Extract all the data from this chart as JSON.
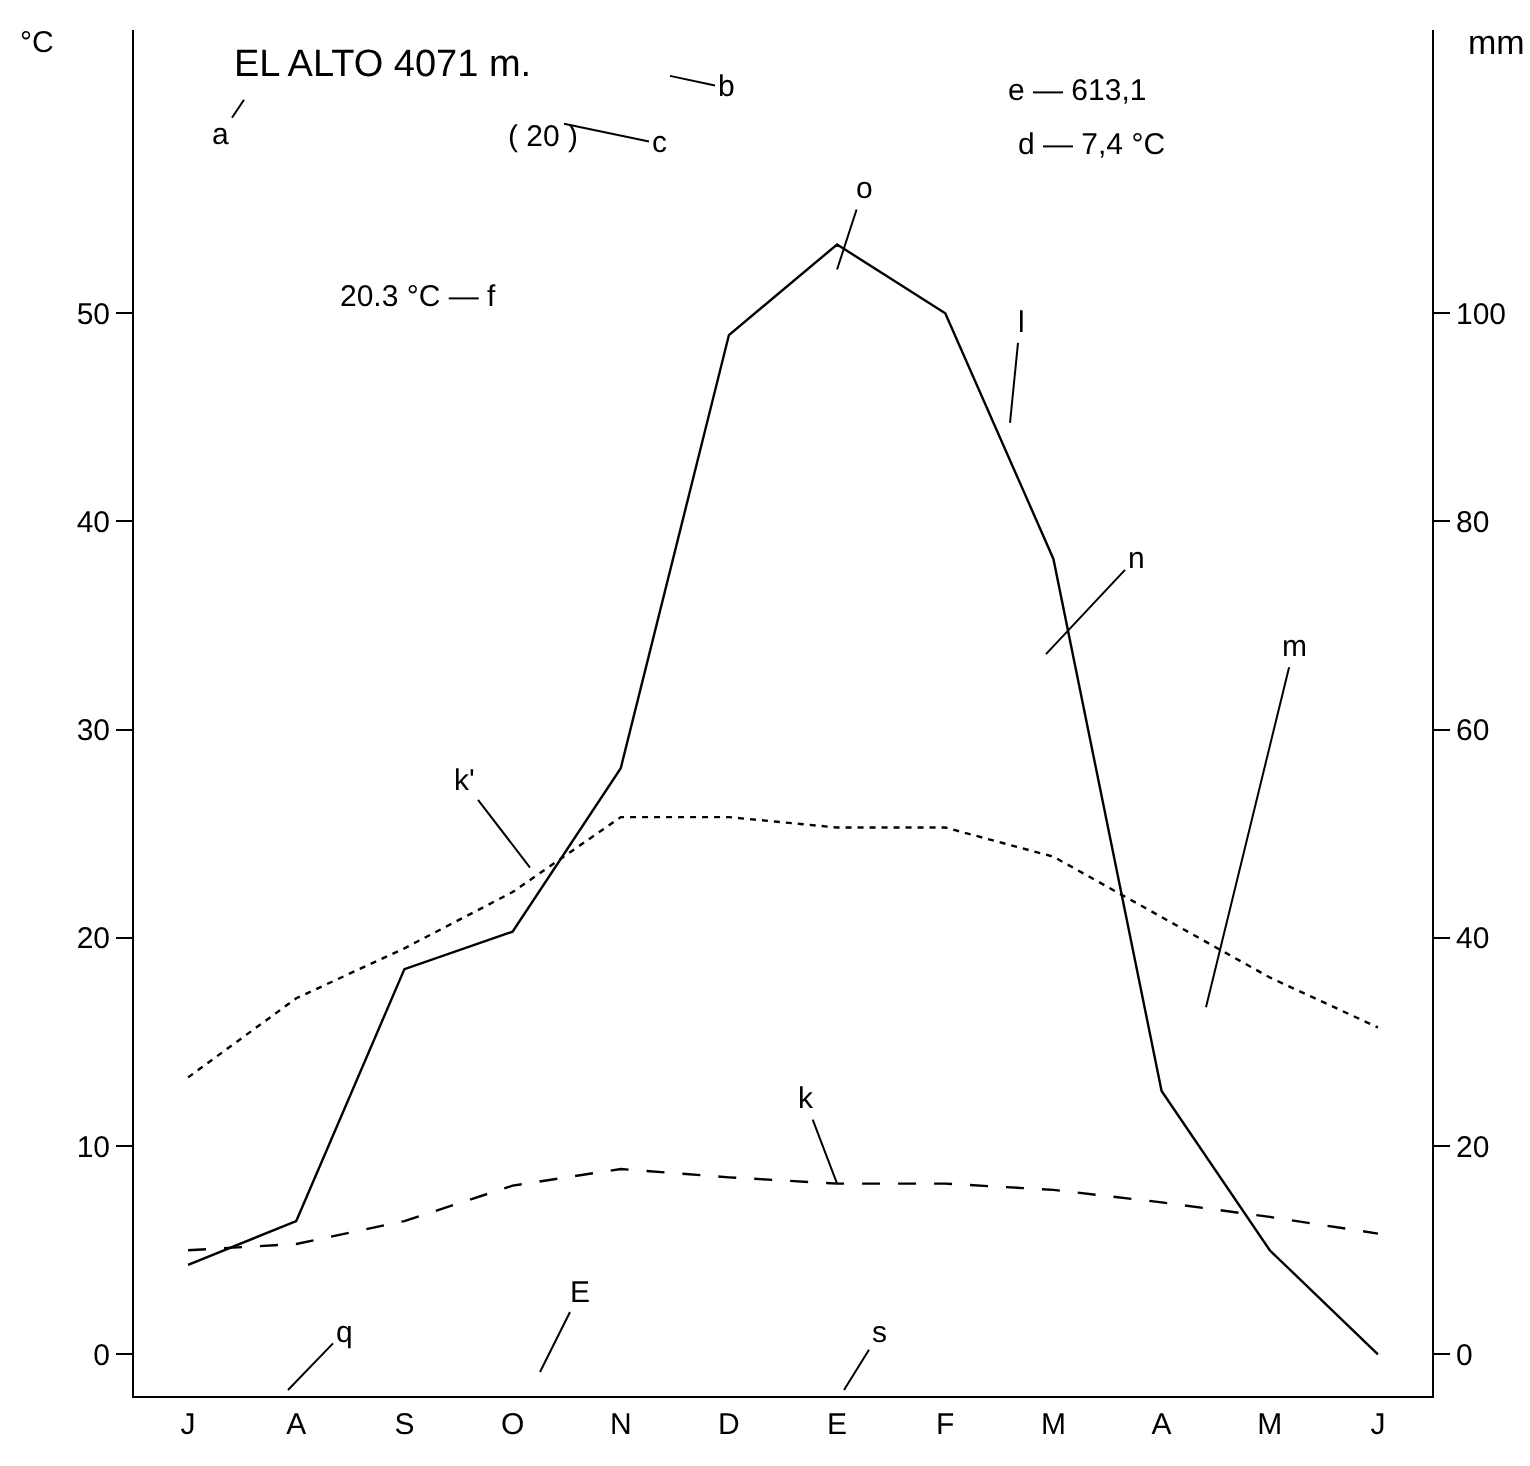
{
  "chart_data": {
    "type": "line",
    "title": "EL ALTO 4071 m.",
    "ylabel": "°C",
    "y2label": "mm",
    "categories": [
      "J",
      "A",
      "S",
      "O",
      "N",
      "D",
      "E",
      "F",
      "M",
      "A",
      "M",
      "J"
    ],
    "ylim": [
      -2,
      63.6
    ],
    "yticks": [
      0,
      10,
      20,
      30,
      40,
      50
    ],
    "y2lim": [
      -4,
      127.2
    ],
    "y2ticks": [
      0,
      20,
      40,
      60,
      80,
      100
    ],
    "marker": "none",
    "series": [
      {
        "color": "#000000",
        "line_style": "dashed",
        "values": [
          5.0,
          5.3,
          6.4,
          8.1,
          8.9,
          8.5,
          8.2,
          8.2,
          7.9,
          7.3,
          6.6,
          5.8
        ]
      },
      {
        "color": "#000000",
        "line_style": "dotted",
        "values": [
          13.3,
          17.1,
          19.5,
          22.2,
          25.8,
          25.8,
          25.3,
          25.3,
          23.9,
          21.0,
          18.1,
          15.7
        ]
      },
      {
        "color": "#000000",
        "line_style": "solid",
        "axis": "y2",
        "values": [
          8.6,
          12.8,
          37.0,
          40.6,
          56.3,
          97.9,
          106.6,
          100,
          76.4,
          25.3,
          10.0,
          0
        ]
      }
    ],
    "annotations": [
      "a",
      "b",
      "( 20 )",
      "c",
      "e — 613,1",
      "d — 7,4 °C",
      "20.3 °C — f",
      "q",
      "E",
      "s",
      "k'",
      "l",
      "m",
      "n",
      {
        "text": "o",
        "x": "E",
        "y": 52.1
      },
      {
        "text": "k",
        "x": "E",
        "y": 8.2
      }
    ]
  }
}
